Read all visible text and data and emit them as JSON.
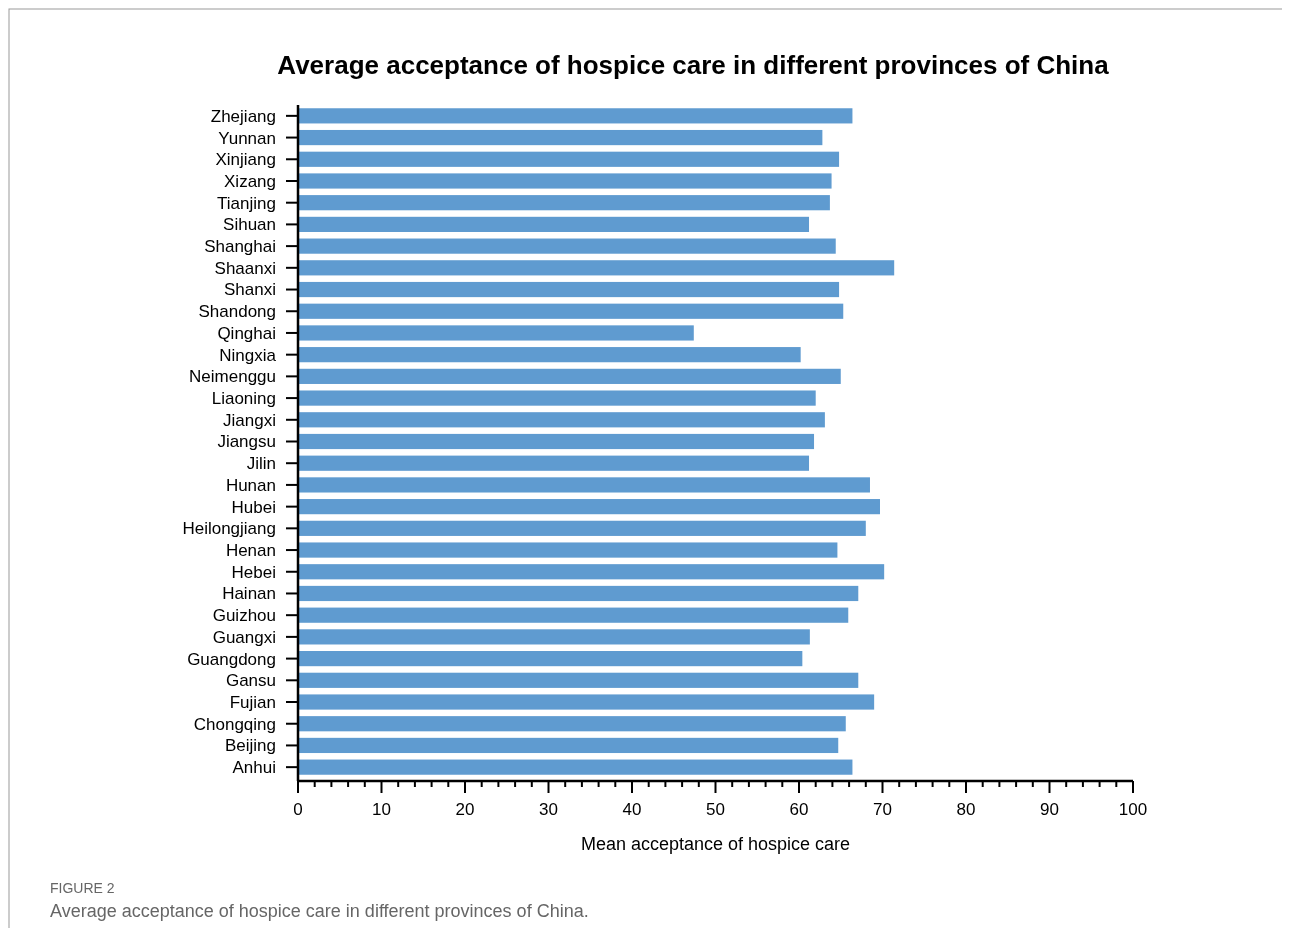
{
  "chart_data": {
    "type": "bar",
    "orientation": "horizontal",
    "title": "Average acceptance of hospice care in different provinces of China",
    "xlabel": "Mean acceptance of hospice care",
    "categories": [
      "Zhejiang",
      "Yunnan",
      "Xinjiang",
      "Xizang",
      "Tianjing",
      "Sihuan",
      "Shanghai",
      "Shaanxi",
      "Shanxi",
      "Shandong",
      "Qinghai",
      "Ningxia",
      "Neimenggu",
      "Liaoning",
      "Jiangxi",
      "Jiangsu",
      "Jilin",
      "Hunan",
      "Hubei",
      "Heilongjiang",
      "Henan",
      "Hebei",
      "Hainan",
      "Guizhou",
      "Guangxi",
      "Guangdong",
      "Gansu",
      "Fujian",
      "Chongqing",
      "Beijing",
      "Anhui"
    ],
    "values": [
      66.4,
      62.8,
      64.8,
      63.9,
      63.7,
      61.2,
      64.4,
      71.4,
      64.8,
      65.3,
      47.4,
      60.2,
      65.0,
      62.0,
      63.1,
      61.8,
      61.2,
      68.5,
      69.7,
      68.0,
      64.6,
      70.2,
      67.1,
      65.9,
      61.3,
      60.4,
      67.1,
      69.0,
      65.6,
      64.7,
      66.4
    ],
    "color": "#5f9bd0",
    "xlim": [
      0,
      100
    ],
    "xticks": [
      0,
      {
        "value": 2,
        "label": null
      },
      {
        "value": 4,
        "label": null
      },
      {
        "value": 6,
        "label": null
      },
      {
        "value": 8,
        "label": null
      },
      10,
      {
        "value": 12,
        "label": null
      },
      {
        "value": 14,
        "label": null
      },
      {
        "value": 16,
        "label": null
      },
      {
        "value": 18,
        "label": null
      },
      20,
      {
        "value": 22,
        "label": null
      },
      {
        "value": 24,
        "label": null
      },
      {
        "value": 26,
        "label": null
      },
      {
        "value": 28,
        "label": null
      },
      30,
      {
        "value": 32,
        "label": null
      },
      {
        "value": 34,
        "label": null
      },
      {
        "value": 36,
        "label": null
      },
      {
        "value": 38,
        "label": null
      },
      40,
      {
        "value": 42,
        "label": null
      },
      {
        "value": 44,
        "label": null
      },
      {
        "value": 46,
        "label": null
      },
      {
        "value": 48,
        "label": null
      },
      50,
      {
        "value": 52,
        "label": null
      },
      {
        "value": 54,
        "label": null
      },
      {
        "value": 56,
        "label": null
      },
      {
        "value": 58,
        "label": null
      },
      60,
      {
        "value": 62,
        "label": null
      },
      {
        "value": 64,
        "label": null
      },
      {
        "value": 66,
        "label": null
      },
      {
        "value": 68,
        "label": null
      },
      70,
      {
        "value": 72,
        "label": null
      },
      {
        "value": 74,
        "label": null
      },
      {
        "value": 76,
        "label": null
      },
      {
        "value": 78,
        "label": null
      },
      80,
      {
        "value": 82,
        "label": null
      },
      {
        "value": 84,
        "label": null
      },
      {
        "value": 86,
        "label": null
      },
      {
        "value": 88,
        "label": null
      },
      90,
      {
        "value": 92,
        "label": null
      },
      {
        "value": 94,
        "label": null
      },
      {
        "value": 96,
        "label": null
      },
      {
        "value": 98,
        "label": null
      },
      100
    ],
    "annotations": [
      "FIGURE 2",
      "Average acceptance of hospice care in different provinces of China."
    ]
  }
}
